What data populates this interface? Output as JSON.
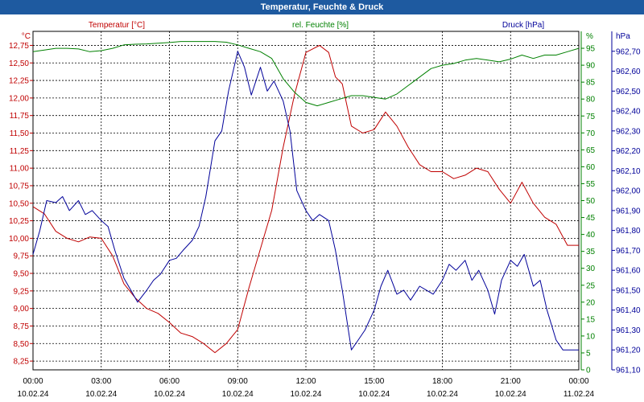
{
  "window": {
    "title": "Temperatur, Feuchte & Druck"
  },
  "chart_data": {
    "type": "line",
    "title": "Temperatur, Feuchte & Druck",
    "grid": true,
    "x_ticks": [
      {
        "time": "00:00",
        "date": "10.02.24"
      },
      {
        "time": "03:00",
        "date": "10.02.24"
      },
      {
        "time": "06:00",
        "date": "10.02.24"
      },
      {
        "time": "09:00",
        "date": "10.02.24"
      },
      {
        "time": "12:00",
        "date": "10.02.24"
      },
      {
        "time": "15:00",
        "date": "10.02.24"
      },
      {
        "time": "18:00",
        "date": "10.02.24"
      },
      {
        "time": "21:00",
        "date": "10.02.24"
      },
      {
        "time": "00:00",
        "date": "11.02.24"
      }
    ],
    "axes": {
      "temperature": {
        "label": "Temperatur [°C]",
        "unit": "°C",
        "color": "#c00000",
        "range": [
          8.125,
          12.95
        ],
        "tick_start": 8.25,
        "tick_step": 0.25,
        "tick_count": 19,
        "ticks": [
          "8,25",
          "8,50",
          "8,75",
          "9,00",
          "9,25",
          "9,50",
          "9,75",
          "10,00",
          "10,25",
          "10,50",
          "10,75",
          "11,00",
          "11,25",
          "11,50",
          "11,75",
          "12,00",
          "12,25",
          "12,50",
          "12,75"
        ]
      },
      "humidity": {
        "label": "rel. Feuchte [%]",
        "unit": "%",
        "color": "#008000",
        "range": [
          0,
          100
        ],
        "tick_start": 0,
        "tick_step": 5,
        "tick_count": 20,
        "ticks": [
          "0",
          "5",
          "10",
          "15",
          "20",
          "25",
          "30",
          "35",
          "40",
          "45",
          "50",
          "55",
          "60",
          "65",
          "70",
          "75",
          "80",
          "85",
          "90",
          "95"
        ]
      },
      "pressure": {
        "label": "Druck [hPa]",
        "unit": "hPa",
        "color": "#000099",
        "range": [
          961.1,
          962.8
        ],
        "tick_start": 961.1,
        "tick_step": 0.1,
        "tick_count": 17,
        "ticks": [
          "961,10",
          "961,20",
          "961,30",
          "961,40",
          "961,50",
          "961,60",
          "961,70",
          "961,80",
          "961,90",
          "962,00",
          "962,10",
          "962,20",
          "962,30",
          "962,40",
          "962,50",
          "962,60",
          "962,70"
        ]
      }
    },
    "series": [
      {
        "name": "Temperatur [°C]",
        "axis": "temperature",
        "color": "#c00000",
        "x_hours": [
          0,
          0.5,
          1,
          1.5,
          2,
          2.5,
          3,
          3.5,
          4,
          4.5,
          5,
          5.5,
          6,
          6.5,
          7,
          7.5,
          8,
          8.5,
          9,
          9.5,
          10,
          10.5,
          11,
          11.5,
          12,
          12.3,
          12.6,
          13,
          13.3,
          13.6,
          14,
          14.5,
          15,
          15.5,
          16,
          16.5,
          17,
          17.5,
          18,
          18.5,
          19,
          19.5,
          20,
          20.5,
          21,
          21.5,
          22,
          22.5,
          23,
          23.5,
          24
        ],
        "values": [
          10.45,
          10.35,
          10.1,
          10.0,
          9.95,
          10.02,
          10.0,
          9.75,
          9.35,
          9.15,
          9.0,
          8.93,
          8.8,
          8.65,
          8.6,
          8.5,
          8.37,
          8.5,
          8.7,
          9.3,
          9.85,
          10.4,
          11.3,
          12.05,
          12.65,
          12.7,
          12.75,
          12.65,
          12.3,
          12.2,
          11.6,
          11.5,
          11.55,
          11.8,
          11.6,
          11.3,
          11.05,
          10.95,
          10.95,
          10.85,
          10.9,
          11.0,
          10.95,
          10.7,
          10.5,
          10.8,
          10.5,
          10.3,
          10.2,
          9.9,
          9.9
        ]
      },
      {
        "name": "rel. Feuchte [%]",
        "axis": "humidity",
        "color": "#008000",
        "x_hours": [
          0,
          0.5,
          1,
          1.5,
          2,
          2.5,
          3,
          3.5,
          4,
          4.5,
          5,
          5.5,
          6,
          6.5,
          7,
          7.5,
          8,
          8.5,
          9,
          9.5,
          10,
          10.5,
          11,
          11.5,
          12,
          12.5,
          13,
          13.5,
          14,
          14.5,
          15,
          15.5,
          16,
          16.5,
          17,
          17.5,
          18,
          18.5,
          19,
          19.5,
          20,
          20.5,
          21,
          21.5,
          22,
          22.5,
          23,
          23.5,
          24
        ],
        "values": [
          94,
          94.5,
          95,
          95,
          94.8,
          94,
          94.3,
          95,
          96,
          96.2,
          96.3,
          96.5,
          96.7,
          97,
          97,
          97,
          97,
          96.8,
          96,
          95,
          94,
          92,
          86,
          82,
          79,
          78,
          79,
          80,
          81,
          81,
          80.5,
          80,
          81.5,
          84,
          86.5,
          89,
          90,
          90.5,
          91.5,
          92,
          91.5,
          91,
          91.8,
          93,
          92,
          93,
          93,
          94,
          95
        ]
      },
      {
        "name": "Druck [hPa]",
        "axis": "pressure",
        "color": "#000099",
        "x_hours": [
          0,
          0.3,
          0.6,
          1,
          1.3,
          1.6,
          2,
          2.3,
          2.6,
          3,
          3.3,
          3.6,
          4,
          4.3,
          4.6,
          5,
          5.3,
          5.6,
          6,
          6.3,
          6.6,
          7,
          7.3,
          7.6,
          8,
          8.3,
          8.6,
          9,
          9.3,
          9.6,
          10,
          10.3,
          10.6,
          11,
          11.3,
          11.6,
          12,
          12.3,
          12.6,
          13,
          13.3,
          13.6,
          14,
          14.3,
          14.6,
          15,
          15.3,
          15.6,
          16,
          16.3,
          16.6,
          17,
          17.3,
          17.6,
          18,
          18.3,
          18.6,
          19,
          19.3,
          19.6,
          20,
          20.3,
          20.6,
          21,
          21.3,
          21.6,
          22,
          22.3,
          22.6,
          23,
          23.3,
          23.6,
          24
        ],
        "values": [
          961.68,
          961.8,
          961.95,
          961.94,
          961.97,
          961.9,
          961.95,
          961.88,
          961.9,
          961.85,
          961.82,
          961.7,
          961.56,
          961.5,
          961.44,
          961.5,
          961.55,
          961.58,
          961.65,
          961.66,
          961.7,
          961.75,
          961.82,
          961.97,
          962.25,
          962.3,
          962.5,
          962.7,
          962.62,
          962.48,
          962.62,
          962.5,
          962.55,
          962.45,
          962.3,
          962.0,
          961.9,
          961.85,
          961.88,
          961.85,
          961.7,
          961.5,
          961.2,
          961.25,
          961.3,
          961.4,
          961.52,
          961.6,
          961.48,
          961.5,
          961.45,
          961.52,
          961.5,
          961.48,
          961.55,
          961.63,
          961.6,
          961.65,
          961.55,
          961.6,
          961.5,
          961.38,
          961.55,
          961.65,
          961.62,
          961.68,
          961.52,
          961.55,
          961.4,
          961.25,
          961.2,
          961.2,
          961.2
        ]
      }
    ]
  }
}
